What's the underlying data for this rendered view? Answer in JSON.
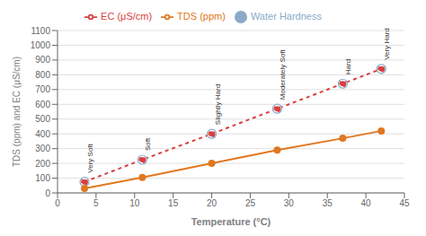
{
  "chart_data": {
    "type": "line",
    "x": [
      3.5,
      11,
      20,
      28.5,
      37,
      42
    ],
    "xlabel": "Temperature (°C)",
    "ylabel": "TDS (ppm)  and EC (μS/cm)",
    "xlim": [
      0,
      45
    ],
    "ylim": [
      0,
      1100
    ],
    "xticks": [
      0,
      5,
      10,
      15,
      20,
      25,
      30,
      35,
      40,
      45
    ],
    "yticks": [
      0,
      100,
      200,
      300,
      400,
      500,
      600,
      700,
      800,
      900,
      1000,
      1100
    ],
    "grid": "y",
    "legend": "top",
    "series": [
      {
        "name": "EC (μS/cm)",
        "type": "line",
        "color": "#d94040",
        "line_style": "dashed",
        "marker": "circle",
        "values": [
          75,
          225,
          400,
          570,
          740,
          840
        ]
      },
      {
        "name": "TDS (ppm)",
        "type": "line",
        "color": "#e07820",
        "line_style": "solid",
        "marker": "circle",
        "values": [
          30,
          105,
          200,
          290,
          370,
          420
        ]
      },
      {
        "name": "Water Hardness",
        "type": "scatter",
        "color": "#8aaac8",
        "marker": "circle",
        "values": [
          75,
          225,
          400,
          570,
          740,
          840
        ]
      }
    ],
    "annotations": [
      {
        "x": 3.5,
        "y": 75,
        "text": "Very Soft"
      },
      {
        "x": 11,
        "y": 225,
        "text": "Soft"
      },
      {
        "x": 20,
        "y": 400,
        "text": "Slightly Hard"
      },
      {
        "x": 28.5,
        "y": 570,
        "text": "Moderately Soft"
      },
      {
        "x": 37,
        "y": 740,
        "text": "Hard"
      },
      {
        "x": 42,
        "y": 840,
        "text": "Very Hard"
      }
    ]
  }
}
